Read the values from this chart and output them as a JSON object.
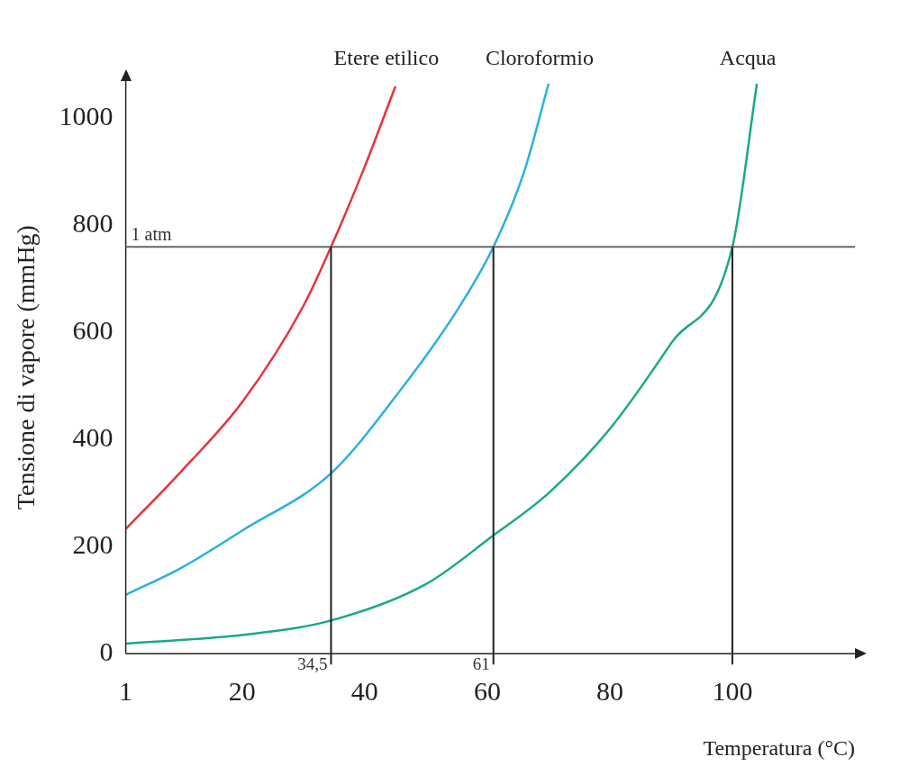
{
  "chart_data": {
    "type": "line",
    "xlabel": "Temperatura (°C)",
    "ylabel": "Tensione di vapore (mmHg)",
    "xlim": [
      1,
      120
    ],
    "xticks": [
      1,
      20,
      40,
      60,
      80,
      100
    ],
    "ylim": [
      0,
      1070
    ],
    "yticks": [
      0,
      200,
      400,
      600,
      800,
      1000
    ],
    "grid": false,
    "legend": false,
    "marker": "none",
    "line_style": "solid",
    "series": [
      {
        "name": "Etere etilico",
        "color": "#e8323c",
        "x": [
          1,
          10,
          20,
          30,
          34.5,
          40,
          45
        ],
        "values": [
          233,
          340,
          470,
          650,
          760,
          910,
          1060
        ]
      },
      {
        "name": "Cloroformio",
        "color": "#2ab0e0",
        "x": [
          1,
          10,
          20,
          34.5,
          45,
          55,
          61,
          66,
          70
        ],
        "values": [
          110,
          160,
          230,
          337,
          480,
          640,
          760,
          900,
          1065
        ]
      },
      {
        "name": "Acqua",
        "color": "#1aa88a",
        "x": [
          1,
          20,
          34.5,
          50,
          61,
          70,
          80,
          90,
          100,
          104
        ],
        "values": [
          19,
          35,
          62,
          130,
          221,
          300,
          420,
          580,
          760,
          1065
        ]
      }
    ],
    "ref_lines": [
      {
        "axis": "y",
        "value": 760,
        "label": "1 atm",
        "color": "#666666"
      },
      {
        "axis": "x",
        "value": 34.5,
        "label": "34,5",
        "color": "#222222"
      },
      {
        "axis": "x",
        "value": 61,
        "label": "61",
        "color": "#222222"
      },
      {
        "axis": "x",
        "value": 100,
        "color": "#222222"
      }
    ]
  }
}
